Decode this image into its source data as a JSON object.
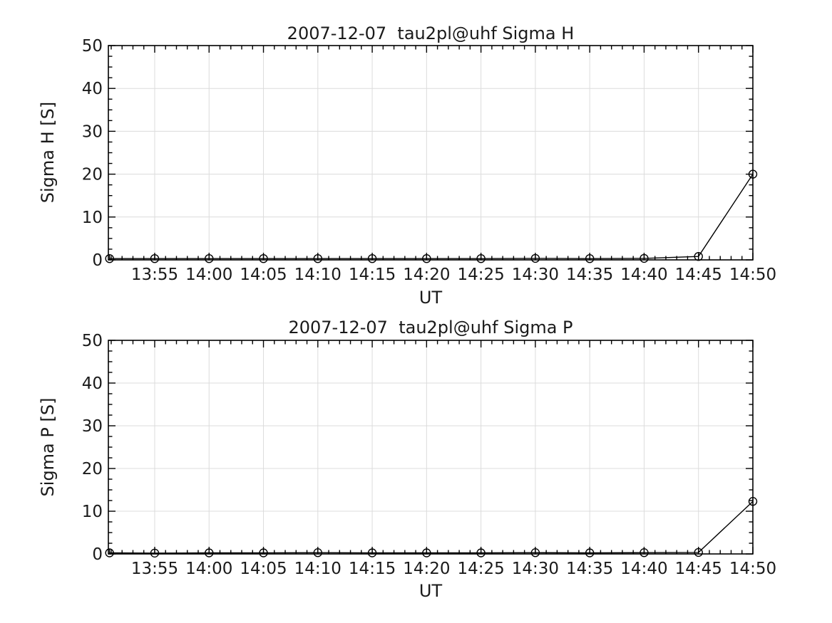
{
  "figure": {
    "background": "#ffffff",
    "axis_color": "#000000",
    "grid_color": "#dcdcdc",
    "text_color": "#1a1a1a",
    "marker": "open-circle"
  },
  "chart_data": [
    {
      "type": "line",
      "subtype": "errorbar",
      "title": "2007-12-07  tau2pl@uhf Sigma H",
      "xlabel": "UT",
      "ylabel": "Sigma H [S]",
      "x_domain_minutes": [
        830.74,
        890
      ],
      "ylim": [
        0,
        50
      ],
      "y_ticks": [
        0,
        10,
        20,
        30,
        40,
        50
      ],
      "y_minor_step": 2.5,
      "x_major_ticks_minutes": [
        835,
        840,
        845,
        850,
        855,
        860,
        865,
        870,
        875,
        880,
        885,
        890
      ],
      "x_tick_labels": [
        "13:55",
        "14:00",
        "14:05",
        "14:10",
        "14:15",
        "14:20",
        "14:25",
        "14:30",
        "14:35",
        "14:40",
        "14:45",
        "14:50"
      ],
      "x_minor_step_minutes": 1,
      "grid": true,
      "legend": "none",
      "series": [
        {
          "name": "Sigma H",
          "x_minutes": [
            830.85,
            835,
            840,
            845,
            850,
            855,
            860,
            865,
            870,
            875,
            880,
            885,
            890
          ],
          "x_times": [
            "13:51",
            "13:55",
            "14:00",
            "14:05",
            "14:10",
            "14:15",
            "14:20",
            "14:25",
            "14:30",
            "14:35",
            "14:40",
            "14:45",
            "14:50"
          ],
          "y": [
            0.3,
            0.3,
            0.3,
            0.3,
            0.3,
            0.3,
            0.3,
            0.3,
            0.35,
            0.3,
            0.35,
            0.8,
            20.0
          ],
          "yerr": [
            0.9,
            0.9,
            0.9,
            0.9,
            0.9,
            0.9,
            0.9,
            0.9,
            0.9,
            0.9,
            0.9,
            0.9,
            0.7
          ]
        }
      ]
    },
    {
      "type": "line",
      "subtype": "errorbar",
      "title": "2007-12-07  tau2pl@uhf Sigma P",
      "xlabel": "UT",
      "ylabel": "Sigma P [S]",
      "x_domain_minutes": [
        830.74,
        890
      ],
      "ylim": [
        0,
        50
      ],
      "y_ticks": [
        0,
        10,
        20,
        30,
        40,
        50
      ],
      "y_minor_step": 2.5,
      "x_major_ticks_minutes": [
        835,
        840,
        845,
        850,
        855,
        860,
        865,
        870,
        875,
        880,
        885,
        890
      ],
      "x_tick_labels": [
        "13:55",
        "14:00",
        "14:05",
        "14:10",
        "14:15",
        "14:20",
        "14:25",
        "14:30",
        "14:35",
        "14:40",
        "14:45",
        "14:50"
      ],
      "x_minor_step_minutes": 1,
      "grid": true,
      "legend": "none",
      "series": [
        {
          "name": "Sigma P",
          "x_minutes": [
            830.85,
            835,
            840,
            845,
            850,
            855,
            860,
            865,
            870,
            875,
            880,
            885,
            890
          ],
          "x_times": [
            "13:51",
            "13:55",
            "14:00",
            "14:05",
            "14:10",
            "14:15",
            "14:20",
            "14:25",
            "14:30",
            "14:35",
            "14:40",
            "14:45",
            "14:50"
          ],
          "y": [
            0.25,
            0.2,
            0.25,
            0.25,
            0.3,
            0.25,
            0.25,
            0.25,
            0.3,
            0.25,
            0.3,
            0.35,
            12.3
          ],
          "yerr": [
            0.9,
            0.9,
            0.9,
            0.9,
            0.9,
            0.9,
            0.9,
            0.9,
            0.9,
            0.9,
            0.9,
            0.9,
            0.7
          ]
        }
      ]
    }
  ]
}
